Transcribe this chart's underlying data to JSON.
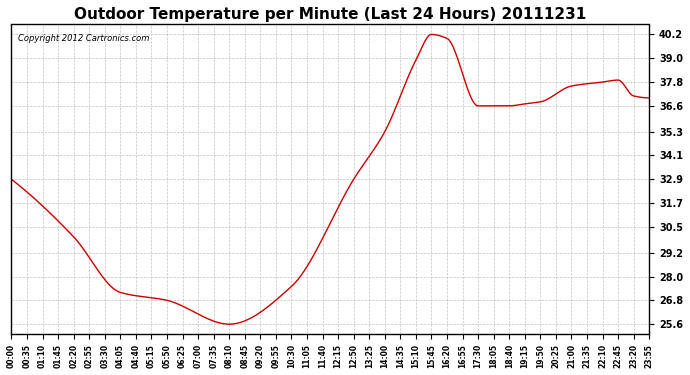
{
  "title": "Outdoor Temperature per Minute (Last 24 Hours) 20111231",
  "copyright_text": "Copyright 2012 Cartronics.com",
  "line_color": "#cc0000",
  "background_color": "#ffffff",
  "grid_color": "#aaaaaa",
  "yticks": [
    25.6,
    26.8,
    28.0,
    29.2,
    30.5,
    31.7,
    32.9,
    34.1,
    35.3,
    36.6,
    37.8,
    39.0,
    40.2
  ],
  "ylim": [
    25.1,
    40.7
  ],
  "xtick_labels": [
    "00:00",
    "00:35",
    "01:10",
    "01:45",
    "02:20",
    "02:55",
    "03:30",
    "04:05",
    "04:40",
    "05:15",
    "05:50",
    "06:25",
    "07:00",
    "07:35",
    "08:10",
    "08:45",
    "09:20",
    "09:55",
    "10:30",
    "11:05",
    "11:40",
    "12:15",
    "12:50",
    "13:25",
    "14:00",
    "14:35",
    "15:10",
    "15:45",
    "16:20",
    "16:55",
    "17:30",
    "18:05",
    "18:40",
    "19:15",
    "19:50",
    "20:25",
    "21:00",
    "21:35",
    "22:10",
    "22:45",
    "23:20",
    "23:55"
  ],
  "key_points": {
    "x_indices": [
      0,
      4,
      7,
      10,
      14,
      18,
      22,
      24,
      26,
      27,
      28,
      30,
      32,
      33,
      34,
      36,
      38,
      39,
      40,
      41
    ],
    "y_values": [
      32.9,
      30.0,
      27.2,
      26.8,
      25.6,
      27.5,
      32.9,
      35.3,
      38.9,
      40.2,
      40.0,
      36.6,
      36.6,
      36.7,
      36.8,
      37.6,
      37.8,
      37.9,
      37.1,
      37.0
    ]
  }
}
